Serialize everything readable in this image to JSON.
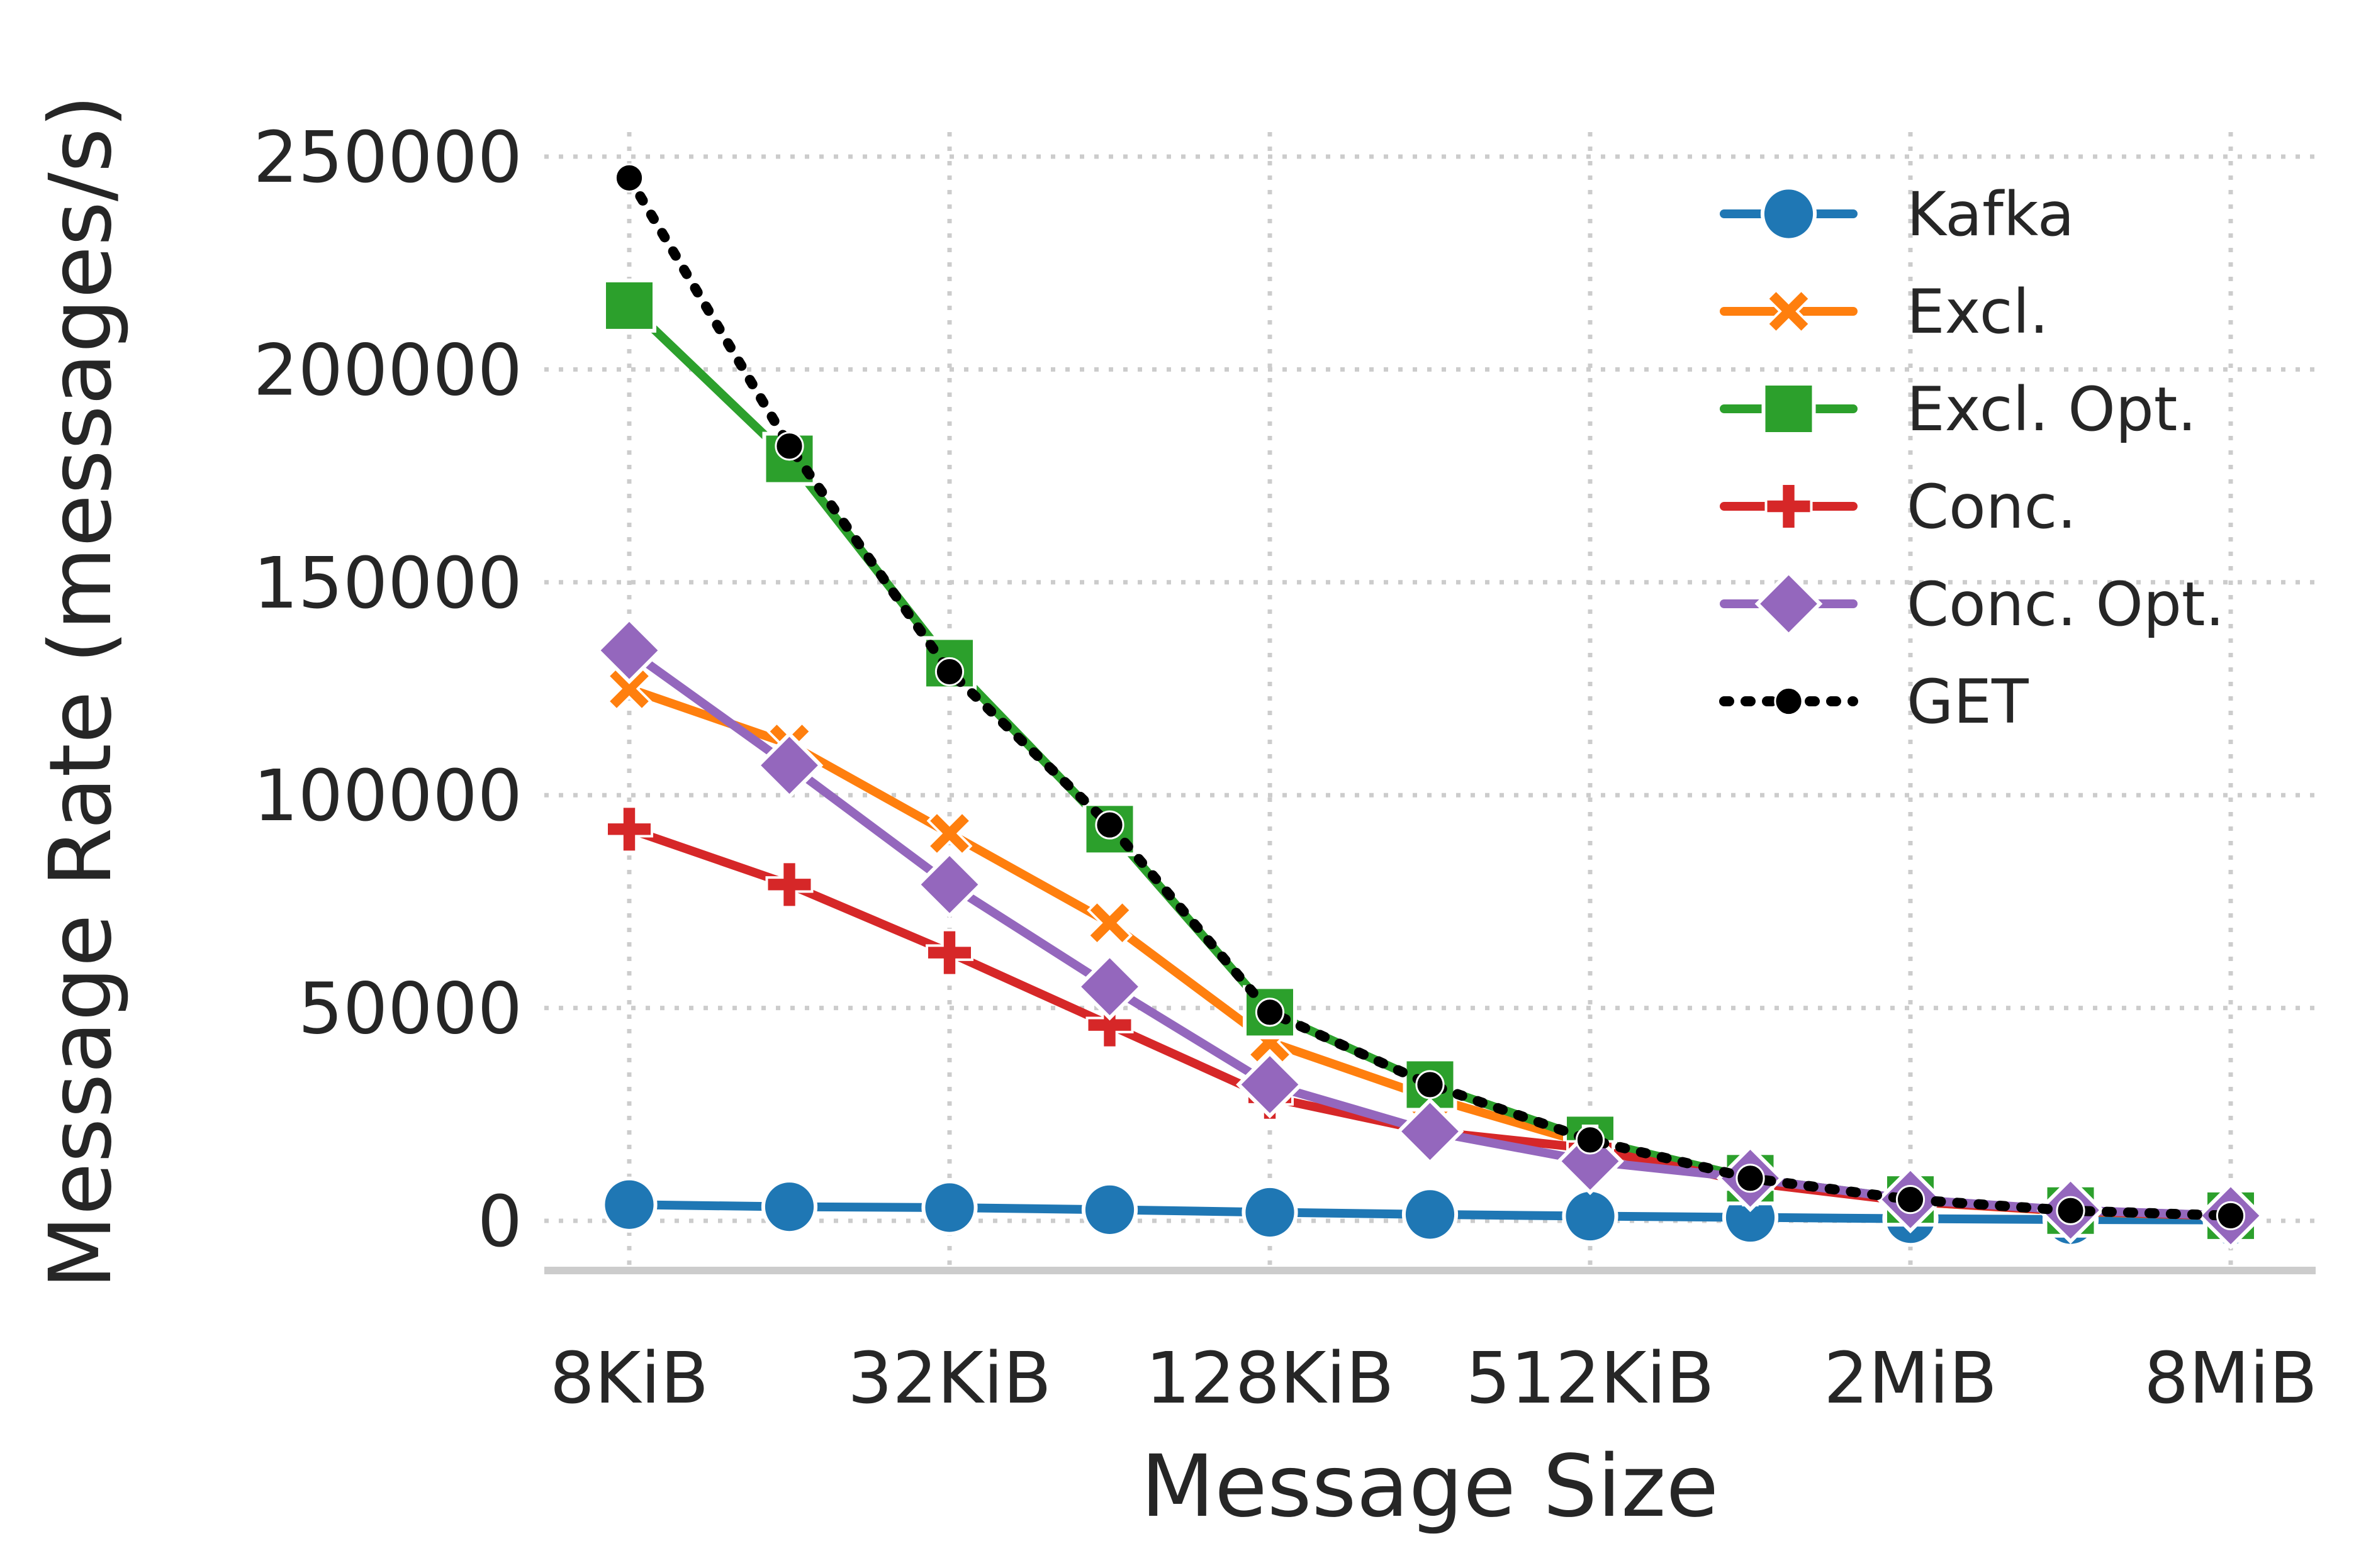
{
  "chart_data": {
    "type": "line",
    "title": "",
    "xlabel": "Message Size",
    "ylabel": "Message Rate (messages/s)",
    "x": [
      "8KiB",
      "16KiB",
      "32KiB",
      "64KiB",
      "128KiB",
      "256KiB",
      "512KiB",
      "1MiB",
      "2MiB",
      "4MiB",
      "8MiB"
    ],
    "x_tick_labels": [
      "8KiB",
      "32KiB",
      "128KiB",
      "512KiB",
      "2MiB",
      "8MiB"
    ],
    "x_tick_indices": [
      0,
      2,
      4,
      6,
      8,
      10
    ],
    "y_ticks": [
      0,
      50000,
      100000,
      150000,
      200000,
      250000
    ],
    "y_tick_labels": [
      "0",
      "50000",
      "100000",
      "150000",
      "200000",
      "250000"
    ],
    "ylim": [
      -12000,
      268000
    ],
    "grid": true,
    "grid_style": "dotted",
    "legend_position": "top-right",
    "series": [
      {
        "name": "Kafka",
        "color": "#1f77b4",
        "marker": "circle",
        "dash": "solid",
        "values": [
          3800,
          3300,
          3100,
          2600,
          2000,
          1500,
          1100,
          800,
          500,
          300,
          200
        ]
      },
      {
        "name": "Excl.",
        "color": "#ff7f0e",
        "marker": "x",
        "dash": "solid",
        "values": [
          125000,
          112000,
          91000,
          70000,
          42000,
          29000,
          18000,
          10000,
          4500,
          2200,
          1100
        ]
      },
      {
        "name": "Excl. Opt.",
        "color": "#2ca02c",
        "marker": "square",
        "dash": "solid",
        "values": [
          215000,
          179000,
          131000,
          92000,
          49000,
          32000,
          19000,
          10000,
          5000,
          2400,
          1200
        ]
      },
      {
        "name": "Conc.",
        "color": "#d62728",
        "marker": "plus",
        "dash": "solid",
        "values": [
          92000,
          79000,
          63000,
          46000,
          29000,
          21000,
          17000,
          9000,
          4500,
          2300,
          1100
        ]
      },
      {
        "name": "Conc. Opt.",
        "color": "#9467bd",
        "marker": "diamond",
        "dash": "solid",
        "values": [
          134000,
          107000,
          79000,
          55000,
          32000,
          21000,
          14000,
          10000,
          5000,
          2500,
          1200
        ]
      },
      {
        "name": "GET",
        "color": "#000000",
        "marker": "dot",
        "dash": "dotted",
        "values": [
          245000,
          182000,
          129000,
          93000,
          49000,
          32000,
          19000,
          10000,
          5000,
          2400,
          1200
        ]
      }
    ]
  }
}
